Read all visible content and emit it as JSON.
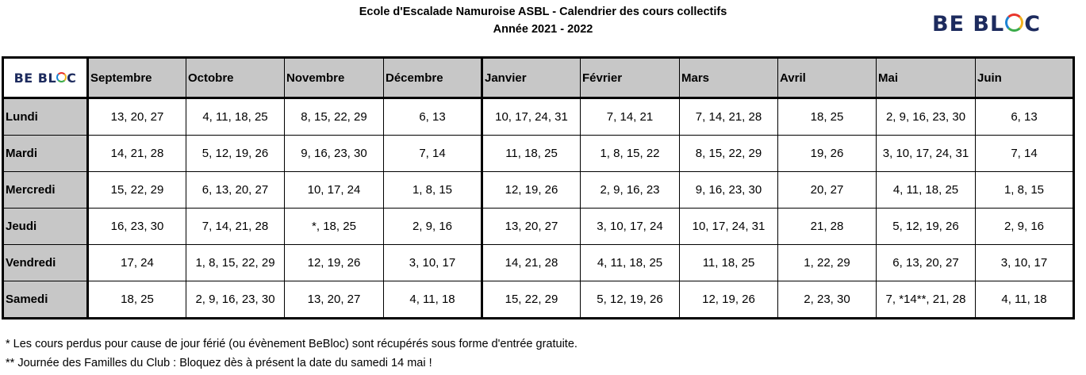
{
  "header": {
    "title_line1": "Ecole d'Escalade Namuroise ASBL - Calendrier des cours collectifs",
    "title_line2": "Année 2021 - 2022"
  },
  "logo": {
    "text_before": "BE BL",
    "text_after": "C"
  },
  "table": {
    "months": [
      "Septembre",
      "Octobre",
      "Novembre",
      "Décembre",
      "Janvier",
      "Février",
      "Mars",
      "Avril",
      "Mai",
      "Juin"
    ],
    "rows": [
      {
        "day": "Lundi",
        "cells": [
          "13, 20, 27",
          "4, 11, 18, 25",
          "8, 15, 22, 29",
          "6, 13",
          "10, 17, 24, 31",
          "7, 14, 21",
          "7, 14, 21, 28",
          "18, 25",
          "2, 9, 16, 23, 30",
          "6, 13"
        ]
      },
      {
        "day": "Mardi",
        "cells": [
          "14, 21, 28",
          "5, 12, 19, 26",
          "9, 16, 23, 30",
          "7, 14",
          "11, 18, 25",
          "1, 8, 15, 22",
          "8, 15, 22, 29",
          "19, 26",
          "3, 10, 17, 24, 31",
          "7, 14"
        ]
      },
      {
        "day": "Mercredi",
        "cells": [
          "15, 22, 29",
          "6, 13, 20, 27",
          "10, 17, 24",
          "1, 8, 15",
          "12, 19, 26",
          "2, 9, 16, 23",
          "9, 16, 23, 30",
          "20, 27",
          "4, 11, 18, 25",
          "1, 8, 15"
        ]
      },
      {
        "day": "Jeudi",
        "cells": [
          "16, 23, 30",
          "7, 14, 21, 28",
          "*, 18, 25",
          "2, 9, 16",
          "13, 20, 27",
          "3, 10, 17, 24",
          "10, 17, 24, 31",
          "21, 28",
          "5, 12, 19, 26",
          "2, 9, 16"
        ]
      },
      {
        "day": "Vendredi",
        "cells": [
          "17, 24",
          "1, 8, 15, 22, 29",
          "12, 19, 26",
          "3, 10, 17",
          "14, 21, 28",
          "4, 11, 18, 25",
          "11, 18, 25",
          "1, 22, 29",
          "6, 13, 20, 27",
          "3, 10, 17"
        ]
      },
      {
        "day": "Samedi",
        "cells": [
          "18, 25",
          "2, 9, 16, 23, 30",
          "13, 20, 27",
          "4, 11, 18",
          "15, 22, 29",
          "5, 12, 19, 26",
          "12, 19, 26",
          "2, 23, 30",
          "7, *14**, 21, 28",
          "4, 11, 18"
        ]
      }
    ]
  },
  "notes": {
    "note1": "* Les cours perdus pour cause de jour férié (ou évènement BeBloc) sont récupérés sous forme d'entrée gratuite.",
    "note2": "** Journée des Familles du Club : Bloquez dès à présent la date du samedi 14 mai !"
  },
  "colors": {
    "header_fill": "#c7c7c7",
    "logo_navy": "#1d2b5e"
  }
}
